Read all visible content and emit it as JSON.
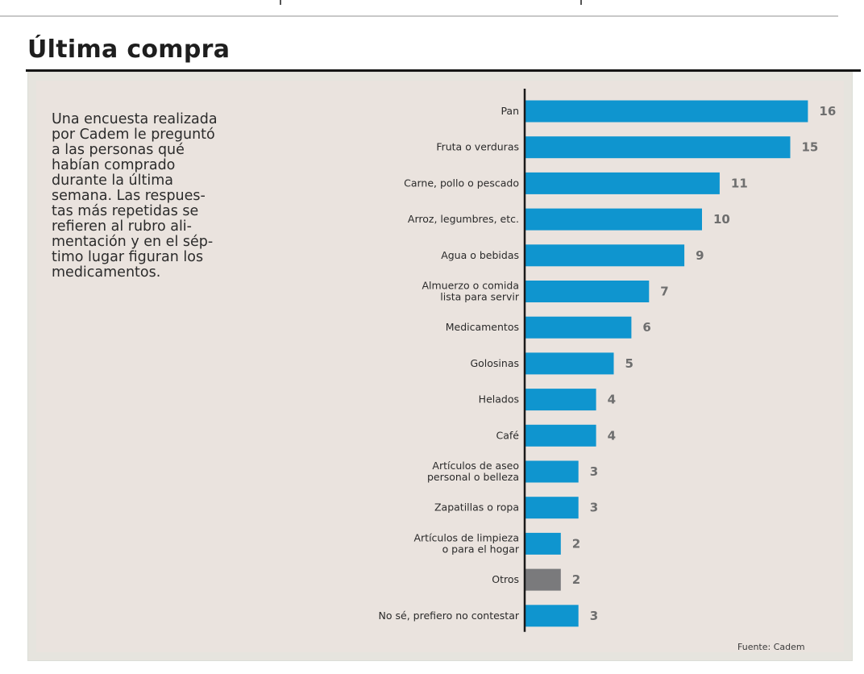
{
  "header": {
    "title": "Última compra"
  },
  "intro": {
    "lines": [
      "Una encuesta realizada",
      "por Cadem le preguntó",
      "a las personas qué",
      "habían comprado",
      "durante la última",
      "semana. Las respues-",
      "tas más repetidas se",
      "refieren al rubro ali-",
      "mentación y en el sép-",
      "timo lugar figuran los",
      "medicamentos."
    ]
  },
  "colors": {
    "bar": "#0f95cf",
    "bar_other": "#7a7a7c",
    "axis": "#1a1a1a"
  },
  "source": "Fuente: Cadem",
  "chart_data": {
    "type": "bar",
    "orientation": "horizontal",
    "title": "Última compra",
    "xlabel": "",
    "ylabel": "",
    "xlim": [
      0,
      16
    ],
    "grid": false,
    "legend": "none",
    "categories": [
      [
        "Pan"
      ],
      [
        "Fruta o verduras"
      ],
      [
        "Carne, pollo o pescado"
      ],
      [
        "Arroz, legumbres, etc."
      ],
      [
        "Agua o bebidas"
      ],
      [
        "Almuerzo o comida",
        "lista para servir"
      ],
      [
        "Medicamentos"
      ],
      [
        "Golosinas"
      ],
      [
        "Helados"
      ],
      [
        "Café"
      ],
      [
        "Artículos de aseo",
        "personal o belleza"
      ],
      [
        "Zapatillas o ropa"
      ],
      [
        "Artículos de limpieza",
        "o para el hogar"
      ],
      [
        "Otros"
      ],
      [
        "No sé, prefiero no contestar"
      ]
    ],
    "values": [
      16,
      15,
      11,
      10,
      9,
      7,
      6,
      5,
      4,
      4,
      3,
      3,
      2,
      2,
      3
    ],
    "highlight": [
      false,
      false,
      false,
      false,
      false,
      false,
      false,
      false,
      false,
      false,
      false,
      false,
      false,
      true,
      false
    ],
    "source": "Fuente: Cadem"
  }
}
